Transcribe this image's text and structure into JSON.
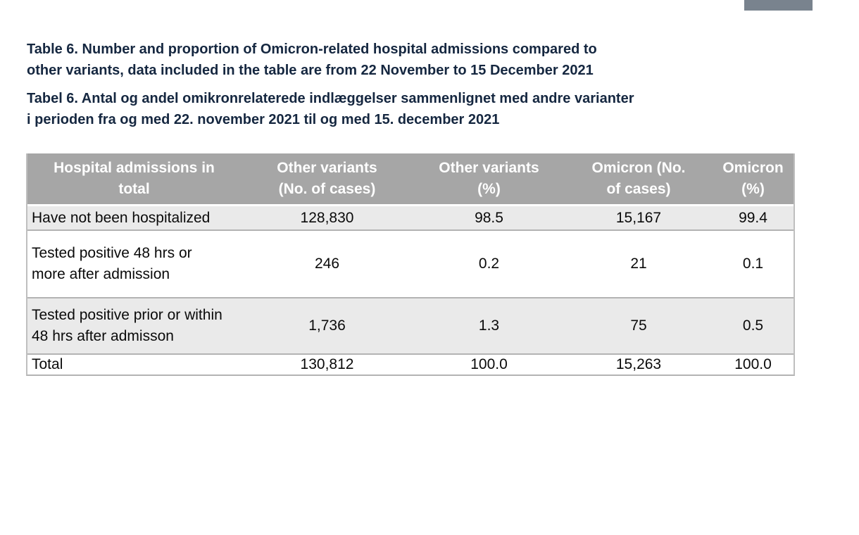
{
  "colors": {
    "title_text": "#152740",
    "header_bg": "#a6a6a6",
    "header_text": "#ffffff",
    "shaded_row": "#eaeaea",
    "row_border": "#b3b3b3",
    "table_edge": "#bfbfbf",
    "body_text": "#0a0a0a",
    "top_rect": "#79838e"
  },
  "title_en": {
    "line1": "Table 6. Number and proportion of Omicron-related hospital admissions compared to",
    "line2": "other variants, data included in the table are from 22 November to 15 December 2021"
  },
  "title_da": {
    "line1": "Tabel 6. Antal og andel omikronrelaterede indlæggelser sammenlignet med andre varianter",
    "line2": "i perioden fra og med 22. november 2021 til og med 15. december 2021"
  },
  "table": {
    "headers": [
      {
        "line1": "Hospital admissions in",
        "line2": "total"
      },
      {
        "line1": "Other variants",
        "line2": "(No. of cases)"
      },
      {
        "line1": "Other variants",
        "line2": "(%)"
      },
      {
        "line1": "Omicron (No.",
        "line2": "of cases)"
      },
      {
        "line1": "Omicron",
        "line2": "(%)"
      }
    ],
    "rows": [
      {
        "label1": "Have not been hospitalized",
        "label2": "",
        "v1": "128,830",
        "v2": "98.5",
        "v3": "15,167",
        "v4": "99.4"
      },
      {
        "label1": "Tested positive 48 hrs or",
        "label2": "more after admission",
        "v1": "246",
        "v2": "0.2",
        "v3": "21",
        "v4": "0.1"
      },
      {
        "label1": "Tested positive prior or within",
        "label2": "48 hrs after admisson",
        "v1": "1,736",
        "v2": "1.3",
        "v3": "75",
        "v4": "0.5"
      },
      {
        "label1": "Total",
        "label2": "",
        "v1": "130,812",
        "v2": "100.0",
        "v3": "15,263",
        "v4": "100.0"
      }
    ]
  }
}
